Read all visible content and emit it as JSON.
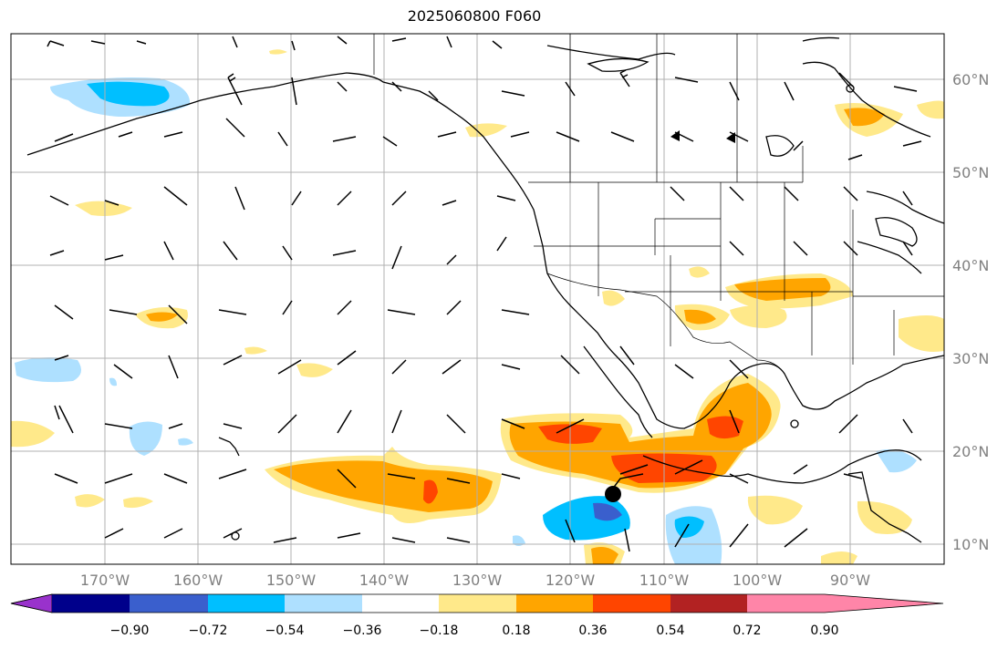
{
  "title": "2025060800 F060",
  "lat_labels": [
    "60°N",
    "50°N",
    "40°N",
    "30°N",
    "20°N",
    "10°N"
  ],
  "lon_labels": [
    "170°W",
    "160°W",
    "150°W",
    "140°W",
    "130°W",
    "120°W",
    "110°W",
    "100°W",
    "90°W"
  ],
  "colorbar": {
    "ticks": [
      "−0.90",
      "−0.72",
      "−0.54",
      "−0.36",
      "−0.18",
      "0.18",
      "0.36",
      "0.54",
      "0.72",
      "0.90"
    ],
    "colors": [
      "#9932cc",
      "#00008b",
      "#3a5fcd",
      "#00bfff",
      "#aee0ff",
      "#ffffff",
      "#ffe98a",
      "#ffa500",
      "#ff4500",
      "#b22222",
      "#ff85a8"
    ]
  },
  "palette": {
    "coast": "#000000",
    "grid": "#b0b0b0",
    "marker": "#000000"
  }
}
